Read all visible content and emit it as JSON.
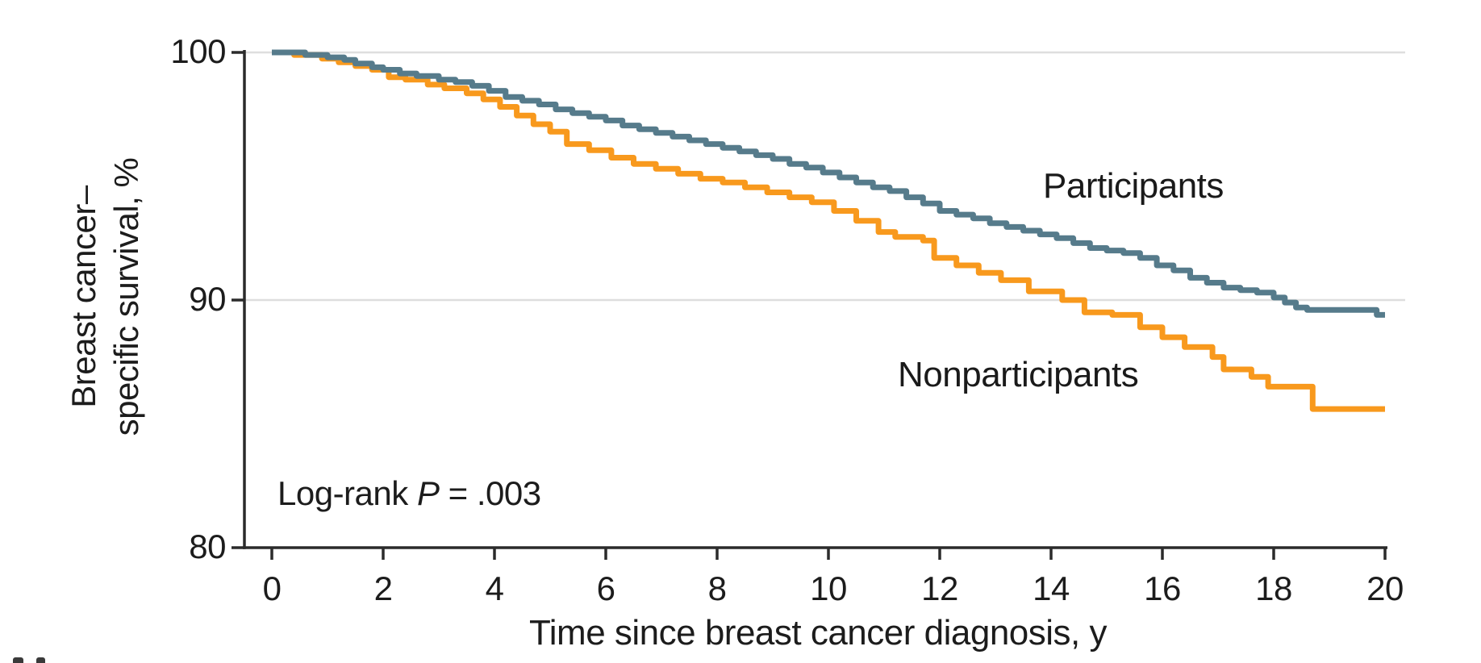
{
  "figure": {
    "y_axis": {
      "title_line1": "Breast cancer–",
      "title_line2": "specific survival, %",
      "tick_labels": [
        "100",
        "90",
        "80"
      ]
    },
    "x_axis": {
      "title": "Time since breast cancer diagnosis, y",
      "tick_labels": [
        "0",
        "2",
        "4",
        "6",
        "8",
        "10",
        "12",
        "14",
        "16",
        "18",
        "20"
      ]
    },
    "annotation": {
      "prefix": "Log-rank ",
      "p_symbol": "P",
      "suffix": " = .003"
    },
    "series_labels": {
      "participants": "Participants",
      "nonparticipants": "Nonparticipants"
    }
  },
  "chart_data": {
    "type": "line",
    "subtype": "kaplan-meier-step",
    "title": "",
    "xlabel": "Time since breast cancer diagnosis, y",
    "ylabel": "Breast cancer-specific survival, %",
    "xlim": [
      0,
      20
    ],
    "ylim": [
      80,
      100
    ],
    "x_ticks": [
      0,
      2,
      4,
      6,
      8,
      10,
      12,
      14,
      16,
      18,
      20
    ],
    "y_ticks": [
      100,
      90,
      80
    ],
    "gridlines_y": [
      100,
      90
    ],
    "grid": true,
    "legend_position": "inline-labels",
    "annotation_text": "Log-rank P = .003",
    "colors": {
      "participants": "#567b8b",
      "nonparticipants": "#f8991d",
      "gridline": "#dedede",
      "axis": "#2b2b2b",
      "text": "#1c1c1c",
      "background": "#ffffff"
    },
    "series": [
      {
        "name": "Nonparticipants",
        "color_key": "nonparticipants",
        "points": [
          [
            0,
            100
          ],
          [
            0.4,
            99.9
          ],
          [
            0.9,
            99.75
          ],
          [
            1.2,
            99.6
          ],
          [
            1.5,
            99.45
          ],
          [
            1.8,
            99.3
          ],
          [
            2.1,
            99.0
          ],
          [
            2.4,
            98.9
          ],
          [
            2.8,
            98.7
          ],
          [
            3.1,
            98.55
          ],
          [
            3.5,
            98.35
          ],
          [
            3.8,
            98.1
          ],
          [
            4.1,
            97.8
          ],
          [
            4.4,
            97.45
          ],
          [
            4.7,
            97.1
          ],
          [
            5.0,
            96.8
          ],
          [
            5.3,
            96.3
          ],
          [
            5.7,
            96.05
          ],
          [
            6.1,
            95.75
          ],
          [
            6.5,
            95.5
          ],
          [
            6.9,
            95.3
          ],
          [
            7.3,
            95.1
          ],
          [
            7.7,
            94.9
          ],
          [
            8.1,
            94.75
          ],
          [
            8.5,
            94.55
          ],
          [
            8.9,
            94.35
          ],
          [
            9.3,
            94.15
          ],
          [
            9.7,
            93.95
          ],
          [
            10.1,
            93.6
          ],
          [
            10.5,
            93.2
          ],
          [
            10.9,
            92.75
          ],
          [
            11.2,
            92.55
          ],
          [
            11.7,
            92.4
          ],
          [
            11.9,
            91.7
          ],
          [
            12.3,
            91.4
          ],
          [
            12.7,
            91.1
          ],
          [
            13.1,
            90.8
          ],
          [
            13.6,
            90.35
          ],
          [
            14.2,
            90.0
          ],
          [
            14.6,
            89.5
          ],
          [
            15.1,
            89.4
          ],
          [
            15.6,
            88.9
          ],
          [
            16.0,
            88.5
          ],
          [
            16.4,
            88.1
          ],
          [
            16.9,
            87.7
          ],
          [
            17.1,
            87.2
          ],
          [
            17.6,
            86.9
          ],
          [
            17.9,
            86.5
          ],
          [
            18.7,
            85.6
          ],
          [
            20,
            85.6
          ]
        ]
      },
      {
        "name": "Participants",
        "color_key": "participants",
        "points": [
          [
            0,
            100
          ],
          [
            0.6,
            99.9
          ],
          [
            1.0,
            99.8
          ],
          [
            1.3,
            99.7
          ],
          [
            1.5,
            99.55
          ],
          [
            1.8,
            99.4
          ],
          [
            2.0,
            99.3
          ],
          [
            2.3,
            99.15
          ],
          [
            2.6,
            99.05
          ],
          [
            3.0,
            98.9
          ],
          [
            3.3,
            98.8
          ],
          [
            3.6,
            98.65
          ],
          [
            3.9,
            98.45
          ],
          [
            4.2,
            98.2
          ],
          [
            4.5,
            98.05
          ],
          [
            4.8,
            97.9
          ],
          [
            5.1,
            97.7
          ],
          [
            5.4,
            97.55
          ],
          [
            5.7,
            97.4
          ],
          [
            6.0,
            97.25
          ],
          [
            6.3,
            97.05
          ],
          [
            6.6,
            96.9
          ],
          [
            6.9,
            96.75
          ],
          [
            7.2,
            96.6
          ],
          [
            7.5,
            96.45
          ],
          [
            7.8,
            96.3
          ],
          [
            8.1,
            96.15
          ],
          [
            8.4,
            96.0
          ],
          [
            8.7,
            95.85
          ],
          [
            9.0,
            95.7
          ],
          [
            9.3,
            95.5
          ],
          [
            9.6,
            95.35
          ],
          [
            9.9,
            95.15
          ],
          [
            10.2,
            94.95
          ],
          [
            10.5,
            94.75
          ],
          [
            10.8,
            94.55
          ],
          [
            11.1,
            94.4
          ],
          [
            11.4,
            94.15
          ],
          [
            11.7,
            93.9
          ],
          [
            12.0,
            93.6
          ],
          [
            12.3,
            93.45
          ],
          [
            12.6,
            93.3
          ],
          [
            12.9,
            93.1
          ],
          [
            13.2,
            92.95
          ],
          [
            13.5,
            92.8
          ],
          [
            13.8,
            92.65
          ],
          [
            14.1,
            92.5
          ],
          [
            14.4,
            92.3
          ],
          [
            14.7,
            92.1
          ],
          [
            15.0,
            92.0
          ],
          [
            15.3,
            91.9
          ],
          [
            15.6,
            91.7
          ],
          [
            15.9,
            91.4
          ],
          [
            16.2,
            91.2
          ],
          [
            16.5,
            90.9
          ],
          [
            16.8,
            90.7
          ],
          [
            17.1,
            90.5
          ],
          [
            17.4,
            90.4
          ],
          [
            17.7,
            90.3
          ],
          [
            18.0,
            90.1
          ],
          [
            18.2,
            89.9
          ],
          [
            18.4,
            89.7
          ],
          [
            18.6,
            89.6
          ],
          [
            19.7,
            89.6
          ],
          [
            19.85,
            89.4
          ],
          [
            20,
            89.4
          ]
        ]
      }
    ]
  }
}
